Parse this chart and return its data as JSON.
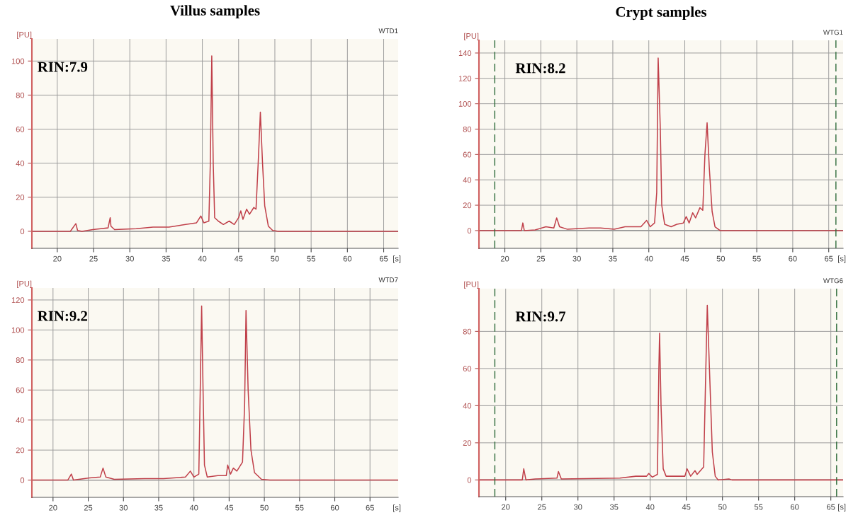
{
  "chart_data": [
    {
      "type": "line",
      "title": "Villus samples",
      "xlabel": "[s]",
      "ylabel": "[PU]",
      "annotations": [
        "RIN:7.9",
        "WTD1"
      ],
      "grid": true,
      "legend": false,
      "xlim": [
        16.5,
        67
      ],
      "ylim": [
        -10,
        113
      ],
      "xticks": [
        20,
        25,
        30,
        35,
        40,
        45,
        50,
        55,
        60,
        65
      ],
      "yticks": [
        0,
        20,
        40,
        60,
        80,
        100
      ],
      "series": [
        {
          "color": "#c0404a",
          "x": [
            16.5,
            21.8,
            22.56,
            22.8,
            23.4,
            24.9,
            26.0,
            27.0,
            27.3,
            27.4,
            27.9,
            30.9,
            33.2,
            35.4,
            37.7,
            39.2,
            39.8,
            40.2,
            40.9,
            41.1,
            41.3,
            41.5,
            41.7,
            42.2,
            42.9,
            43.7,
            44.4,
            45.0,
            45.3,
            45.6,
            46.1,
            46.5,
            47.1,
            47.4,
            47.7,
            48.0,
            48.3,
            48.6,
            49.1,
            49.7,
            50.5,
            67
          ],
          "values": [
            0,
            0,
            4.5,
            0.5,
            0,
            1,
            1.5,
            2,
            8,
            3,
            1,
            1.5,
            2.5,
            2.5,
            4,
            5,
            9,
            5,
            6,
            40,
            103,
            40,
            8,
            6,
            4,
            6,
            4,
            8,
            12,
            7,
            13,
            10,
            14,
            13,
            40,
            70,
            40,
            15,
            3,
            0.5,
            0,
            0
          ]
        }
      ]
    },
    {
      "type": "line",
      "title": "Crypt samples",
      "xlabel": "[s]",
      "ylabel": "[PU]",
      "annotations": [
        "RIN:8.2",
        "WTG1"
      ],
      "grid": true,
      "legend": false,
      "xlim": [
        16.4,
        67
      ],
      "ylim": [
        -14,
        150
      ],
      "xticks": [
        20,
        25,
        30,
        35,
        40,
        45,
        50,
        55,
        60,
        65
      ],
      "yticks": [
        0,
        20,
        40,
        60,
        80,
        100,
        120,
        140
      ],
      "ref_lines": [
        {
          "axis": "x",
          "value": 18.6,
          "color": "#2e6b3a",
          "line_style": "dashed"
        },
        {
          "axis": "x",
          "value": 66.0,
          "color": "#2e6b3a",
          "line_style": "dashed"
        }
      ],
      "series": [
        {
          "color": "#c0404a",
          "x": [
            16.4,
            22.3,
            22.5,
            22.7,
            24.2,
            25.7,
            26.8,
            27.2,
            27.6,
            28.7,
            31.7,
            33.3,
            35.2,
            36.7,
            38.9,
            39.7,
            40.2,
            40.8,
            41.1,
            41.3,
            41.6,
            41.8,
            42.2,
            43.1,
            43.9,
            44.8,
            45.2,
            45.6,
            46.1,
            46.5,
            47.1,
            47.5,
            47.8,
            48.1,
            48.4,
            48.8,
            49.2,
            49.9,
            67
          ],
          "values": [
            0,
            0,
            6,
            0,
            0.5,
            3,
            2,
            10,
            3,
            1,
            2,
            2,
            1,
            3,
            3,
            8,
            3,
            6,
            30,
            136,
            80,
            20,
            5,
            3,
            5,
            6,
            11,
            6,
            14,
            10,
            18,
            16,
            60,
            85,
            50,
            15,
            3,
            0,
            0
          ]
        }
      ]
    },
    {
      "type": "line",
      "xlabel": "[s]",
      "ylabel": "[PU]",
      "annotations": [
        "RIN:9.2",
        "WTD7"
      ],
      "grid": true,
      "legend": false,
      "xlim": [
        17,
        69
      ],
      "ylim": [
        -11.5,
        128
      ],
      "xticks": [
        20,
        25,
        30,
        35,
        40,
        45,
        50,
        55,
        60,
        65
      ],
      "yticks": [
        0,
        20,
        40,
        60,
        80,
        100,
        120
      ],
      "series": [
        {
          "color": "#c0404a",
          "x": [
            17,
            22.1,
            22.6,
            22.9,
            25.2,
            26.7,
            27.1,
            27.5,
            28.7,
            33.0,
            35.7,
            38.8,
            39.5,
            40.0,
            40.7,
            40.9,
            41.1,
            41.3,
            41.5,
            41.9,
            43.4,
            44.6,
            44.8,
            45.2,
            45.6,
            46.1,
            46.9,
            47.2,
            47.4,
            47.7,
            48.1,
            48.6,
            49.6,
            50.8,
            69
          ],
          "values": [
            0,
            0,
            4,
            0,
            1.5,
            2,
            8,
            2,
            0.5,
            1,
            1,
            2,
            6,
            2,
            4,
            60,
            116,
            60,
            10,
            2,
            3,
            3,
            10,
            4,
            8,
            6,
            12,
            50,
            113,
            60,
            20,
            5,
            0.5,
            0,
            0
          ]
        }
      ]
    },
    {
      "type": "line",
      "xlabel": "[s]",
      "ylabel": "[PU]",
      "annotations": [
        "RIN:9.7",
        "WTG6"
      ],
      "grid": true,
      "legend": false,
      "xlim": [
        16.3,
        66.7
      ],
      "ylim": [
        -9,
        103
      ],
      "xticks": [
        20,
        25,
        30,
        35,
        40,
        45,
        50,
        55,
        60,
        65
      ],
      "yticks": [
        0,
        20,
        40,
        60,
        80
      ],
      "ref_lines": [
        {
          "axis": "x",
          "value": 18.5,
          "color": "#2e6b3a",
          "line_style": "dashed"
        },
        {
          "axis": "x",
          "value": 65.8,
          "color": "#2e6b3a",
          "line_style": "dashed"
        }
      ],
      "series": [
        {
          "color": "#c0404a",
          "x": [
            16.3,
            22.3,
            22.5,
            22.8,
            24.1,
            27.1,
            27.3,
            27.7,
            35.8,
            38.0,
            39.5,
            39.8,
            40.3,
            41.0,
            41.2,
            41.3,
            41.5,
            41.8,
            42.2,
            43.7,
            44.8,
            45.1,
            45.6,
            46.2,
            46.5,
            47.4,
            47.7,
            47.9,
            48.2,
            48.6,
            49.0,
            49.4,
            50.9,
            51.3,
            66.7
          ],
          "values": [
            0,
            0,
            6,
            0,
            0.5,
            1,
            4.5,
            0.5,
            1,
            2,
            2,
            3.5,
            1.5,
            3,
            60,
            79,
            40,
            6,
            2,
            2,
            2,
            6,
            2,
            5,
            3,
            7,
            60,
            94,
            60,
            15,
            2,
            0,
            0.5,
            0,
            0
          ]
        }
      ]
    }
  ]
}
